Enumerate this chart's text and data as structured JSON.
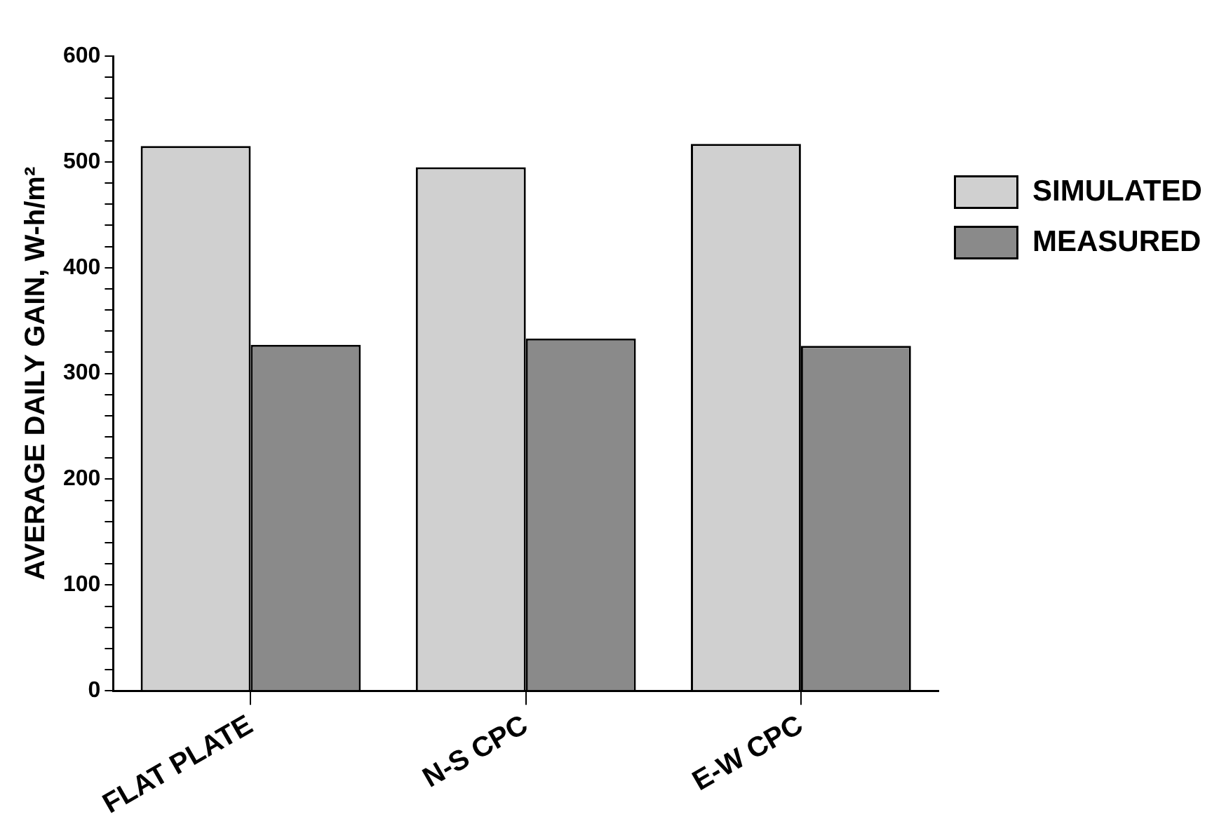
{
  "chart_data": {
    "type": "bar",
    "ylabel": "AVERAGE DAILY GAIN, W-h/m²",
    "categories": [
      "FLAT PLATE",
      "N-S CPC",
      "E-W CPC"
    ],
    "series": [
      {
        "name": "SIMULATED",
        "color": "#d0d0d0",
        "values": [
          515,
          495,
          517
        ]
      },
      {
        "name": "MEASURED",
        "color": "#8a8a8a",
        "values": [
          327,
          333,
          326
        ]
      }
    ],
    "ylim": [
      0,
      600
    ],
    "yticks": [
      0,
      {
        "value": 20,
        "label": null
      },
      {
        "value": 40,
        "label": null
      },
      {
        "value": 60,
        "label": null
      },
      {
        "value": 80,
        "label": null
      },
      100,
      {
        "value": 120,
        "label": null
      },
      {
        "value": 140,
        "label": null
      },
      {
        "value": 160,
        "label": null
      },
      {
        "value": 180,
        "label": null
      },
      200,
      {
        "value": 220,
        "label": null
      },
      {
        "value": 240,
        "label": null
      },
      {
        "value": 260,
        "label": null
      },
      {
        "value": 280,
        "label": null
      },
      300,
      {
        "value": 320,
        "label": null
      },
      {
        "value": 340,
        "label": null
      },
      {
        "value": 360,
        "label": null
      },
      {
        "value": 380,
        "label": null
      },
      400,
      {
        "value": 420,
        "label": null
      },
      {
        "value": 440,
        "label": null
      },
      {
        "value": 460,
        "label": null
      },
      {
        "value": 480,
        "label": null
      },
      500,
      {
        "value": 520,
        "label": null
      },
      {
        "value": 540,
        "label": null
      },
      {
        "value": 560,
        "label": null
      },
      {
        "value": 580,
        "label": null
      },
      600
    ],
    "grid": false,
    "legend": "right"
  }
}
